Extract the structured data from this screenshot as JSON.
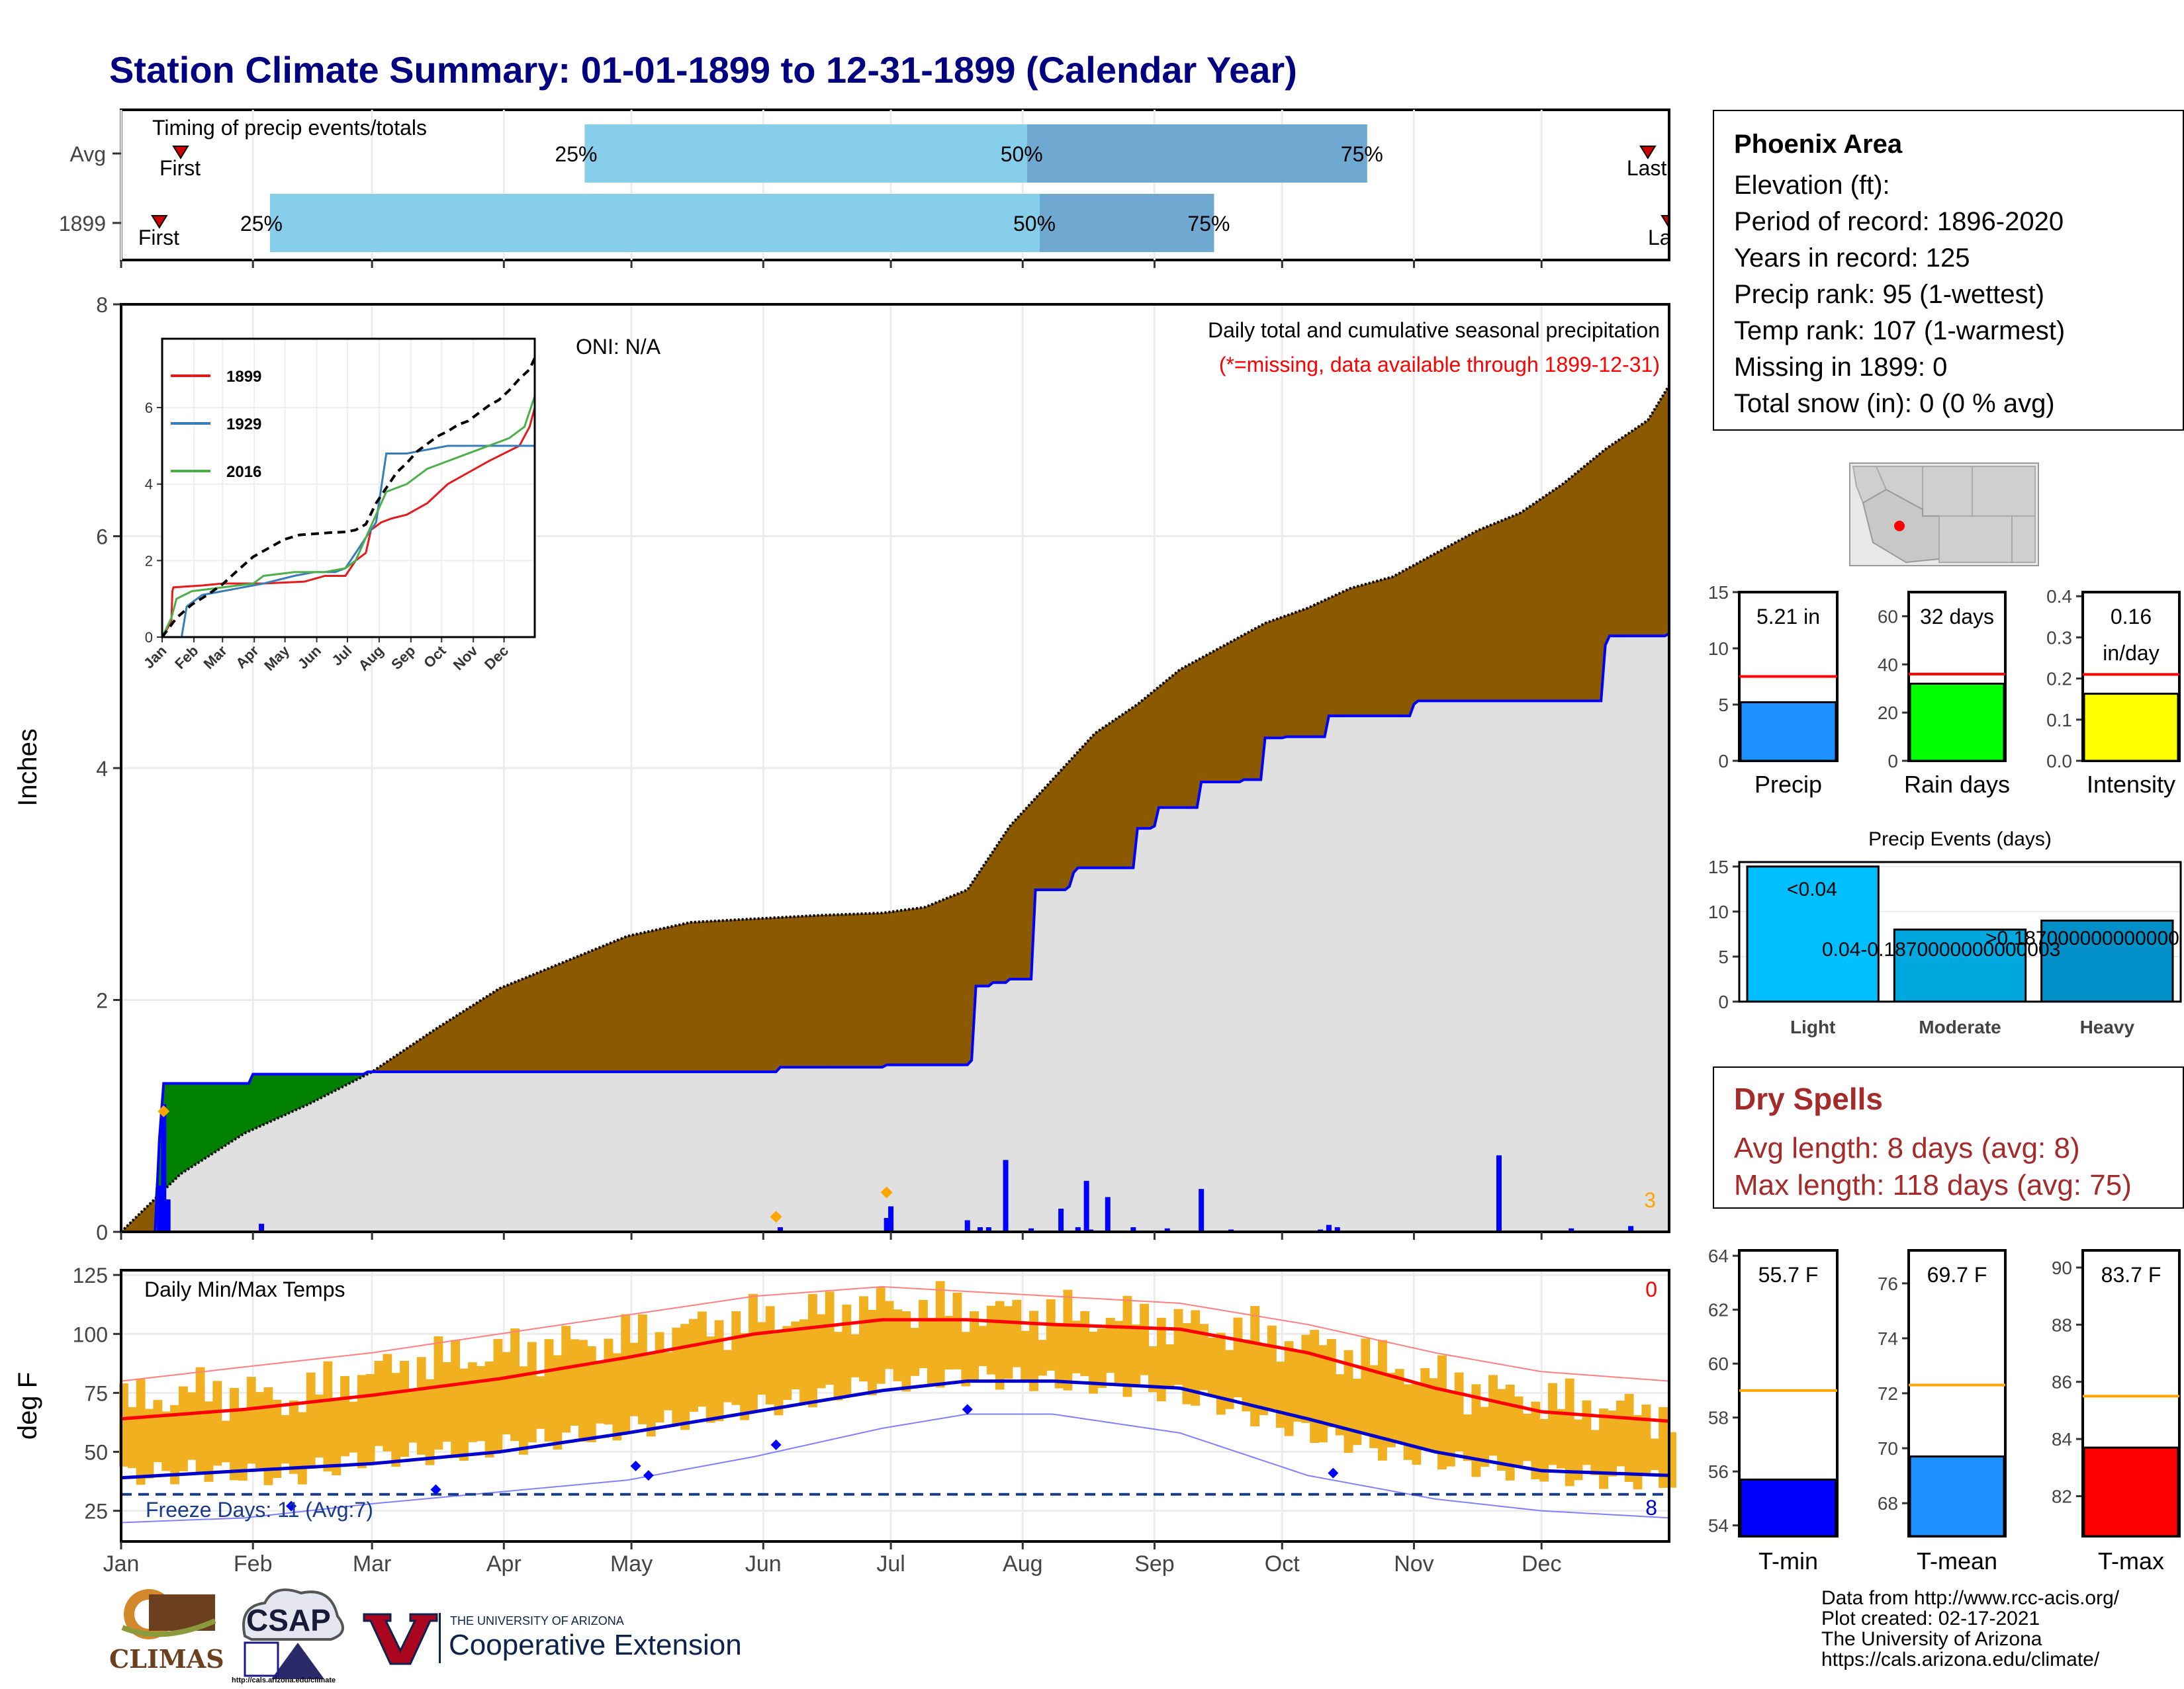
{
  "title": "Station Climate Summary: 01-01-1899 to 12-31-1899 (Calendar Year)",
  "timing": {
    "label": "Timing of precip events/totals",
    "rows": [
      {
        "name": "Avg",
        "first_day": 15,
        "p25": 110,
        "p50": 214,
        "p75": 294,
        "last_day": 360
      },
      {
        "name": "1899",
        "first_day": 10,
        "p25": 36,
        "p50": 217,
        "p75": 258,
        "last_day": 365
      }
    ],
    "marker_first": "First",
    "marker_last": "Last",
    "p25_label": "25%",
    "p50_label": "50%",
    "p75_label": "75%",
    "colors": {
      "light": "#87ceeb",
      "dark": "#6fa8d0"
    }
  },
  "precip_panel": {
    "ylabel": "Inches",
    "header": "Daily total and cumulative seasonal precipitation",
    "subheader": "(*=missing, data available through 1899-12-31)",
    "oni": "ONI: N/A",
    "missing_count": "3",
    "colors": {
      "deficit": "#8b5a00",
      "surplus": "#008000",
      "cumulative": "#0000ff",
      "fill": "#e0e0e0",
      "daily": "#0000ff"
    }
  },
  "temp_panel": {
    "ylabel": "deg F",
    "header": "Daily Min/Max Temps",
    "top_count": "0",
    "bottom_count": "8",
    "freeze_label": "Freeze Days: 11 (Avg:7)",
    "freeze_line": 32
  },
  "station": {
    "name": "Phoenix Area",
    "lines": [
      "Elevation (ft):",
      "Period of record: 1896-2020",
      "Years in record: 125",
      "Precip rank: 95 (1-wettest)",
      "Temp rank: 107 (1-warmest)",
      "Missing in 1899: 0",
      "Total snow (in): 0 (0 % avg)"
    ]
  },
  "dry_spells": {
    "title": "Dry Spells",
    "avg": "Avg length: 8 days (avg: 8)",
    "max": "Max length: 118 days (avg: 75)"
  },
  "credits": [
    "Data from http://www.rcc-acis.org/",
    "Plot created: 02-17-2021",
    "The University of Arizona",
    "https://cals.arizona.edu/climate/"
  ],
  "logos": {
    "climas": "CLIMAS",
    "csap": "CSAP",
    "csap_url": "http://cals.arizona.edu/climate",
    "ua_small": "THE UNIVERSITY OF ARIZONA",
    "ua_big": "Cooperative Extension"
  },
  "chart_data": [
    {
      "type": "area",
      "id": "cumulative-precip",
      "title": "Daily total and cumulative seasonal precipitation",
      "xlabel": "",
      "ylabel": "Inches",
      "ylim": [
        0,
        8
      ],
      "xlim": [
        1,
        365
      ],
      "x_ticks": [
        "Jan",
        "Feb",
        "Mar",
        "Apr",
        "May",
        "Jun",
        "Jul",
        "Aug",
        "Sep",
        "Oct",
        "Nov",
        "Dec"
      ],
      "y_ticks": [
        0,
        2,
        4,
        6,
        8
      ],
      "series": [
        {
          "name": "1899 cumulative",
          "x": [
            1,
            9,
            10,
            11,
            31,
            32,
            59,
            60,
            155,
            156,
            180,
            181,
            181,
            200,
            201,
            202,
            205,
            206,
            210,
            215,
            216,
            224,
            225,
            226,
            239,
            240,
            244,
            245,
            250,
            255,
            265,
            270,
            275,
            276,
            285,
            305,
            306,
            350,
            351,
            365
          ],
          "values": [
            0,
            0,
            0.8,
            1.28,
            1.28,
            1.36,
            1.38,
            1.38,
            1.38,
            1.42,
            1.42,
            1.44,
            1.44,
            1.44,
            1.48,
            2.12,
            2.12,
            2.15,
            2.18,
            2.18,
            2.95,
            2.98,
            3.1,
            3.14,
            3.14,
            3.48,
            3.5,
            3.66,
            3.66,
            3.88,
            3.9,
            4.26,
            4.27,
            4.27,
            4.45,
            4.55,
            4.58,
            5.06,
            5.14,
            5.16
          ]
        },
        {
          "name": "Average cumulative",
          "x": [
            1,
            15,
            30,
            45,
            60,
            75,
            90,
            100,
            110,
            120,
            135,
            150,
            165,
            180,
            190,
            200,
            210,
            220,
            230,
            240,
            250,
            260,
            270,
            280,
            290,
            300,
            310,
            320,
            330,
            340,
            350,
            360,
            365
          ],
          "values": [
            0,
            0.5,
            0.85,
            1.1,
            1.38,
            1.75,
            2.1,
            2.25,
            2.4,
            2.55,
            2.67,
            2.7,
            2.73,
            2.75,
            2.8,
            2.95,
            3.5,
            3.9,
            4.3,
            4.55,
            4.85,
            5.05,
            5.25,
            5.38,
            5.55,
            5.65,
            5.85,
            6.05,
            6.2,
            6.45,
            6.75,
            7.0,
            7.3
          ]
        },
        {
          "name": "Daily precip",
          "x": [
            10,
            11,
            12,
            34,
            156,
            181,
            182,
            182,
            200,
            203,
            205,
            209,
            215,
            217,
            222,
            226,
            228,
            229,
            233,
            239,
            247,
            255,
            262,
            283,
            285,
            287,
            289,
            297,
            325,
            342,
            356
          ],
          "values": [
            0.4,
            1.1,
            0.28,
            0.07,
            0.04,
            0.12,
            0.22,
            0.1,
            0.1,
            0.04,
            0.04,
            0.62,
            0.03,
            0.01,
            0.2,
            0.04,
            0.44,
            0.02,
            0.3,
            0.04,
            0.03,
            0.37,
            0.02,
            0.02,
            0.06,
            0.04,
            0.01,
            0.01,
            0.66,
            0.03,
            0.05
          ]
        }
      ]
    },
    {
      "type": "line",
      "id": "inset-comparison",
      "xlabel": "",
      "ylabel": "",
      "ylim": [
        0,
        7.8
      ],
      "y_ticks": [
        0,
        2,
        4,
        6
      ],
      "x_ticks": [
        "Jan",
        "Feb",
        "Mar",
        "Apr",
        "May",
        "Jun",
        "Jul",
        "Aug",
        "Sep",
        "Oct",
        "Nov",
        "Dec"
      ],
      "series": [
        {
          "name": "1899",
          "color": "#e41a1c",
          "x": [
            1,
            10,
            11,
            12,
            40,
            60,
            100,
            140,
            160,
            180,
            190,
            200,
            205,
            215,
            225,
            240,
            260,
            280,
            300,
            320,
            335,
            350,
            360,
            365
          ],
          "values": [
            0,
            0.4,
            1.2,
            1.3,
            1.35,
            1.4,
            1.4,
            1.45,
            1.6,
            1.6,
            2.0,
            2.2,
            2.8,
            3.0,
            3.1,
            3.2,
            3.5,
            4.0,
            4.3,
            4.6,
            4.8,
            5.0,
            5.5,
            6.0
          ]
        },
        {
          "name": "1929",
          "color": "#377eb8",
          "x": [
            1,
            20,
            25,
            40,
            60,
            80,
            100,
            130,
            150,
            170,
            180,
            195,
            210,
            220,
            240,
            260,
            280,
            300,
            320,
            340,
            365
          ],
          "values": [
            0,
            0,
            0.8,
            1.1,
            1.2,
            1.3,
            1.4,
            1.6,
            1.7,
            1.7,
            1.8,
            2.4,
            3.0,
            4.8,
            4.8,
            4.9,
            5.0,
            5.0,
            5.0,
            5.0,
            5.0
          ]
        },
        {
          "name": "2016",
          "color": "#4daf4a",
          "x": [
            1,
            10,
            15,
            30,
            60,
            90,
            100,
            130,
            160,
            180,
            190,
            200,
            210,
            220,
            240,
            260,
            280,
            300,
            320,
            340,
            355,
            365
          ],
          "values": [
            0,
            0.5,
            1.0,
            1.2,
            1.3,
            1.4,
            1.6,
            1.7,
            1.7,
            1.8,
            2.0,
            2.6,
            3.2,
            3.8,
            4.0,
            4.4,
            4.6,
            4.8,
            5.0,
            5.2,
            5.5,
            6.3
          ]
        },
        {
          "name": "Average",
          "color": "#000000",
          "dashed": true,
          "x": [
            1,
            15,
            30,
            45,
            60,
            75,
            90,
            100,
            110,
            120,
            135,
            150,
            165,
            180,
            190,
            200,
            210,
            220,
            230,
            240,
            250,
            260,
            270,
            280,
            290,
            300,
            310,
            320,
            330,
            340,
            350,
            360,
            365
          ],
          "values": [
            0,
            0.5,
            0.85,
            1.1,
            1.38,
            1.75,
            2.1,
            2.25,
            2.4,
            2.55,
            2.67,
            2.7,
            2.73,
            2.75,
            2.8,
            2.95,
            3.5,
            3.9,
            4.3,
            4.55,
            4.85,
            5.05,
            5.25,
            5.38,
            5.55,
            5.65,
            5.85,
            6.05,
            6.2,
            6.45,
            6.75,
            7.0,
            7.3
          ]
        }
      ]
    },
    {
      "type": "line",
      "id": "daily-temps",
      "title": "Daily Min/Max Temps",
      "xlabel": "",
      "ylabel": "deg F",
      "ylim": [
        12,
        127
      ],
      "y_ticks": [
        25,
        50,
        75,
        100,
        125
      ],
      "x_ticks": [
        "Jan",
        "Feb",
        "Mar",
        "Apr",
        "May",
        "Jun",
        "Jul",
        "Aug",
        "Sep",
        "Oct",
        "Nov",
        "Dec"
      ],
      "series": [
        {
          "name": "Normal max",
          "color": "#ff0000",
          "x": [
            1,
            30,
            60,
            90,
            120,
            150,
            180,
            200,
            220,
            250,
            280,
            310,
            335,
            365
          ],
          "values": [
            64,
            68,
            74,
            81,
            90,
            100,
            106,
            106,
            104,
            102,
            92,
            77,
            67,
            63
          ]
        },
        {
          "name": "Normal min",
          "color": "#0000cd",
          "x": [
            1,
            30,
            60,
            90,
            120,
            150,
            180,
            200,
            220,
            250,
            280,
            310,
            335,
            365
          ],
          "values": [
            39,
            42,
            45,
            50,
            58,
            67,
            76,
            80,
            80,
            77,
            64,
            50,
            42,
            40
          ]
        },
        {
          "name": "Record high",
          "color": "#ff8080",
          "x": [
            1,
            30,
            60,
            90,
            120,
            150,
            180,
            200,
            220,
            250,
            280,
            310,
            335,
            365
          ],
          "values": [
            80,
            86,
            92,
            100,
            108,
            116,
            120,
            118,
            116,
            113,
            104,
            92,
            84,
            80
          ]
        },
        {
          "name": "Record low",
          "color": "#8080ff",
          "x": [
            1,
            30,
            60,
            90,
            120,
            150,
            180,
            200,
            220,
            250,
            280,
            310,
            335,
            365
          ],
          "values": [
            20,
            22,
            28,
            33,
            38,
            48,
            60,
            66,
            66,
            58,
            40,
            30,
            25,
            22
          ]
        },
        {
          "name": "1899 daily max (band top)",
          "x": [
            1,
            20,
            40,
            60,
            80,
            100,
            120,
            140,
            160,
            180,
            200,
            220,
            240,
            260,
            280,
            300,
            320,
            340,
            365
          ],
          "values": [
            70,
            76,
            72,
            84,
            90,
            94,
            98,
            104,
            108,
            112,
            110,
            108,
            106,
            102,
            96,
            86,
            76,
            70,
            66
          ]
        },
        {
          "name": "1899 daily min (band bottom)",
          "x": [
            1,
            20,
            40,
            60,
            80,
            100,
            120,
            140,
            160,
            180,
            200,
            220,
            240,
            260,
            280,
            300,
            320,
            340,
            365
          ],
          "values": [
            40,
            42,
            40,
            48,
            50,
            55,
            60,
            66,
            72,
            80,
            82,
            80,
            78,
            70,
            58,
            50,
            44,
            40,
            38
          ]
        }
      ],
      "freeze_line": 32
    },
    {
      "type": "bar",
      "id": "precip-total-bar",
      "categories": [
        "Precip"
      ],
      "values": [
        5.21
      ],
      "value_label": "5.21 in",
      "avg_line": 7.5,
      "ylim": [
        0,
        15
      ],
      "y_ticks": [
        0,
        5,
        10,
        15
      ],
      "color": "#1e90ff"
    },
    {
      "type": "bar",
      "id": "rain-days-bar",
      "categories": [
        "Rain days"
      ],
      "values": [
        32
      ],
      "value_label": "32 days",
      "avg_line": 36,
      "ylim": [
        0,
        70
      ],
      "y_ticks": [
        0,
        20,
        40,
        60
      ],
      "color": "#00ff00"
    },
    {
      "type": "bar",
      "id": "intensity-bar",
      "categories": [
        "Intensity"
      ],
      "values": [
        0.163
      ],
      "value_label_1": "0.16",
      "value_label_2": "in/day",
      "avg_line": 0.21,
      "ylim": [
        0,
        0.41
      ],
      "y_ticks": [
        0.0,
        0.1,
        0.2,
        0.3,
        0.4
      ],
      "color": "#ffff00"
    },
    {
      "type": "bar",
      "id": "precip-events",
      "title": "Precip Events (days)",
      "categories": [
        "Light",
        "Moderate",
        "Heavy"
      ],
      "values": [
        15,
        8,
        9
      ],
      "bar_labels": [
        "<0.04",
        "0.04-0.1870000000000003",
        ">0.187000000000000"
      ],
      "ylim": [
        0,
        15.5
      ],
      "y_ticks": [
        0,
        5,
        10,
        15
      ],
      "colors": [
        "#00bfff",
        "#00a8e0",
        "#0090c8"
      ]
    },
    {
      "type": "bar",
      "id": "tmin-bar",
      "categories": [
        "T-min"
      ],
      "values": [
        55.7
      ],
      "value_label": "55.7 F",
      "avg_line": 59.0,
      "ylim": [
        53.6,
        64.2
      ],
      "y_ticks": [
        54,
        56,
        58,
        60,
        62,
        64
      ],
      "color": "#0000ff"
    },
    {
      "type": "bar",
      "id": "tmean-bar",
      "categories": [
        "T-mean"
      ],
      "values": [
        69.7
      ],
      "value_label": "69.7 F",
      "avg_line": 72.3,
      "ylim": [
        66.8,
        77.2
      ],
      "y_ticks": [
        68,
        70,
        72,
        74,
        76
      ],
      "color": "#1e90ff"
    },
    {
      "type": "bar",
      "id": "tmax-bar",
      "categories": [
        "T-max"
      ],
      "values": [
        83.7
      ],
      "value_label": "83.7 F",
      "avg_line": 85.5,
      "ylim": [
        80.6,
        90.6
      ],
      "y_ticks": [
        82,
        84,
        86,
        88,
        90
      ],
      "color": "#ff0000"
    }
  ]
}
